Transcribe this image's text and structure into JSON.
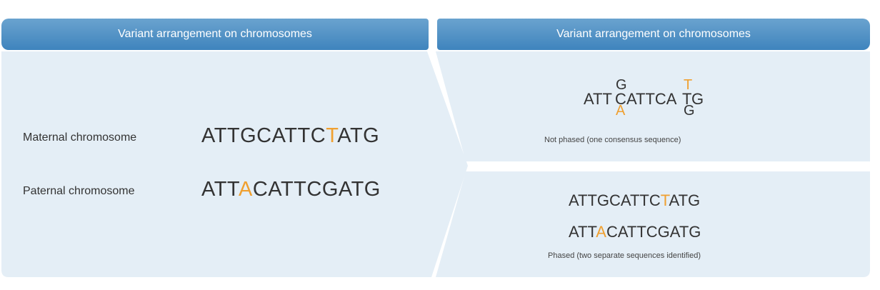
{
  "left": {
    "header": "Variant arrangement on chromosomes",
    "maternal_label": "Maternal chromosome",
    "maternal_seq": {
      "a": "ATTGCATTC",
      "v": "T",
      "b": "ATG"
    },
    "paternal_label": "Paternal chromosome",
    "paternal_seq": {
      "a": "ATT",
      "v": "A",
      "b": "CATTCGATG"
    }
  },
  "right": {
    "header": "Variant arrangement on chromosomes",
    "not_phased": {
      "seq_a": "ATT",
      "base_top_1": "G",
      "base_main_1": "C",
      "base_bottom_1": "A",
      "seq_b": "ATTCA",
      "base_top_2": "T",
      "base_main_2": "T",
      "base_bottom_2": "G",
      "seq_c": "G",
      "caption": "Not phased (one consensus sequence)"
    },
    "phased": {
      "seq1": {
        "a": "ATTGCATTC",
        "v": "T",
        "b": "ATG"
      },
      "seq2": {
        "a": "ATT",
        "v": "A",
        "b": "CATTCGATG"
      },
      "caption": "Phased (two separate sequences identified)"
    }
  },
  "colors": {
    "header": "#4a8dc4",
    "panel": "#e4eef6",
    "variant": "#f0a030",
    "text": "#333333"
  }
}
